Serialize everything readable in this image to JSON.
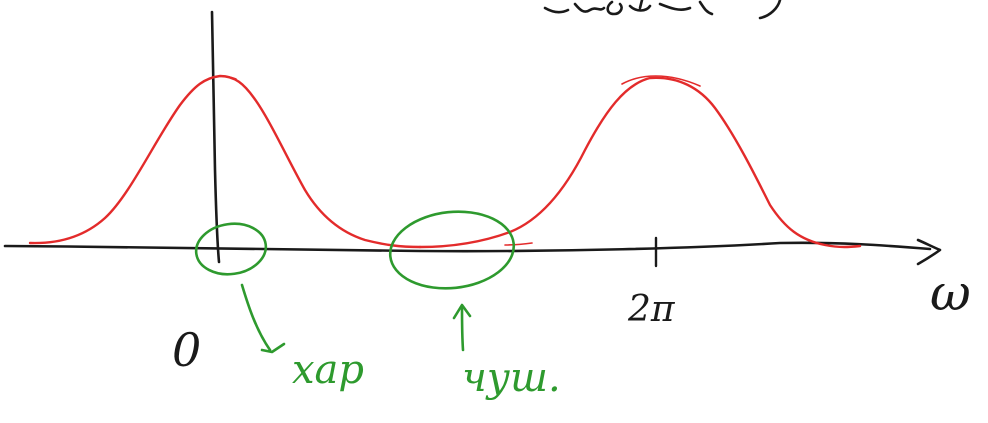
{
  "labels": {
    "origin": "0",
    "two_pi": "2π",
    "axis_var": "ω",
    "low_freq": "хар",
    "high_freq": "чуш.",
    "top_fragment": "Aκ(ω)"
  },
  "colors": {
    "axis": "#1a1a1a",
    "curve": "#e32b2b",
    "annotation": "#2e9a2e",
    "background": "#ffffff"
  }
}
